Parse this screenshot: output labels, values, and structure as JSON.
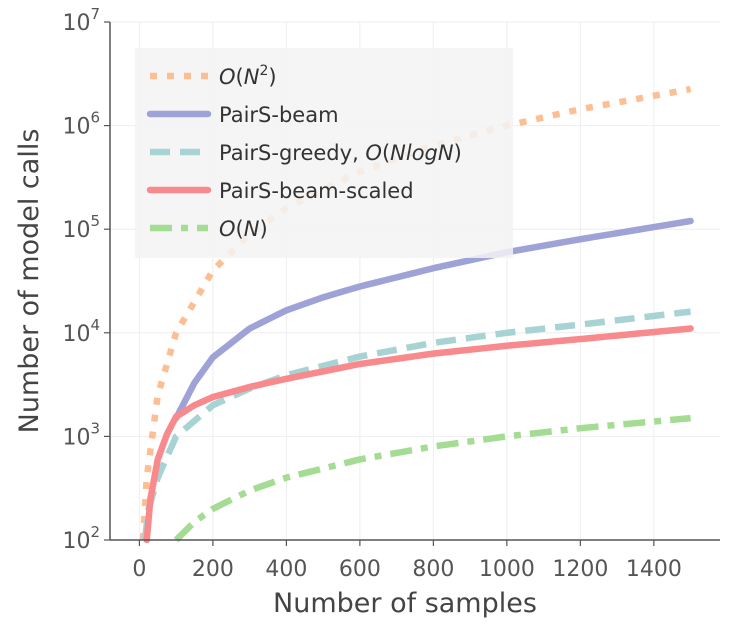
{
  "chart_data": {
    "type": "line",
    "xlabel": "Number of samples",
    "ylabel": "Number of model calls",
    "xlim": [
      -80,
      1580
    ],
    "ylim": [
      100,
      10000000
    ],
    "yscale": "log",
    "grid": true,
    "legend_position": "top-left",
    "xticks": [
      "0",
      "200",
      "400",
      "600",
      "800",
      "1000",
      "1200",
      "1400"
    ],
    "yticks": [
      {
        "base": "10",
        "exp": "2"
      },
      {
        "base": "10",
        "exp": "3"
      },
      {
        "base": "10",
        "exp": "4"
      },
      {
        "base": "10",
        "exp": "5"
      },
      {
        "base": "10",
        "exp": "6"
      },
      {
        "base": "10",
        "exp": "7"
      }
    ],
    "series": [
      {
        "name": "O(N^2)",
        "legend": [
          {
            "t": "O",
            "i": true
          },
          {
            "t": "(",
            "i": false
          },
          {
            "t": "N",
            "i": true
          },
          {
            "t": "2",
            "sup": true
          },
          {
            "t": ")",
            "i": false
          }
        ],
        "color": "#fcbf93",
        "style": "dotted",
        "x": [
          10,
          20,
          50,
          100,
          200,
          300,
          400,
          600,
          800,
          1000,
          1200,
          1500
        ],
        "y": [
          100,
          400,
          2500,
          10000,
          40000,
          90000,
          160000,
          360000,
          640000,
          1000000,
          1440000,
          2250000
        ]
      },
      {
        "name": "PairS-beam",
        "legend": [
          {
            "t": "PairS-beam",
            "i": false
          }
        ],
        "color": "#9ea2d6",
        "style": "solid",
        "x": [
          100,
          150,
          200,
          300,
          400,
          500,
          600,
          800,
          1000,
          1200,
          1500
        ],
        "y": [
          1500,
          3300,
          5800,
          11000,
          16500,
          22000,
          28000,
          42000,
          60000,
          80000,
          120000
        ]
      },
      {
        "name": "PairS-greedy, O(NlogN)",
        "legend": [
          {
            "t": "PairS-greedy, ",
            "i": false
          },
          {
            "t": "O",
            "i": true
          },
          {
            "t": "(",
            "i": false
          },
          {
            "t": "NlogN",
            "i": true
          },
          {
            "t": ")",
            "i": false
          }
        ],
        "color": "#a8d3d4",
        "style": "dashed",
        "x": [
          15,
          25,
          50,
          100,
          200,
          300,
          400,
          600,
          800,
          1000,
          1200,
          1500
        ],
        "y": [
          100,
          200,
          400,
          1000,
          2000,
          2900,
          3900,
          5900,
          8000,
          10000,
          12000,
          16000
        ]
      },
      {
        "name": "PairS-beam-scaled",
        "legend": [
          {
            "t": "PairS-beam-scaled",
            "i": false
          }
        ],
        "color": "#f8898d",
        "style": "solid",
        "x": [
          20,
          30,
          50,
          75,
          100,
          150,
          200,
          300,
          400,
          600,
          800,
          1000,
          1200,
          1500
        ],
        "y": [
          100,
          250,
          600,
          1050,
          1550,
          2000,
          2400,
          3000,
          3600,
          5000,
          6300,
          7500,
          8700,
          11000
        ]
      },
      {
        "name": "O(N)",
        "legend": [
          {
            "t": "O",
            "i": true
          },
          {
            "t": "(",
            "i": false
          },
          {
            "t": "N",
            "i": true
          },
          {
            "t": ")",
            "i": false
          }
        ],
        "color": "#a4dc93",
        "style": "dashdot",
        "x": [
          100,
          150,
          200,
          300,
          400,
          600,
          800,
          1000,
          1200,
          1500
        ],
        "y": [
          100,
          150,
          200,
          300,
          400,
          600,
          800,
          1000,
          1200,
          1500
        ]
      }
    ]
  }
}
